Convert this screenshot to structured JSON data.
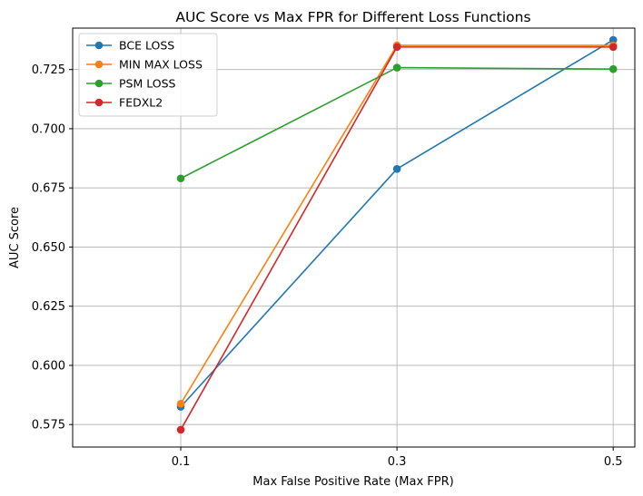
{
  "chart_data": {
    "type": "line",
    "title": "AUC Score vs Max FPR for Different Loss Functions",
    "xlabel": "Max False Positive Rate (Max FPR)",
    "ylabel": "AUC Score",
    "categories": [
      "0.1",
      "0.3",
      "0.5"
    ],
    "x": [
      0.1,
      0.3,
      0.5
    ],
    "xlim": [
      0.0,
      0.52
    ],
    "ylim": [
      0.5655,
      0.7425
    ],
    "yticks": [
      0.575,
      0.6,
      0.625,
      0.65,
      0.675,
      0.7,
      0.725
    ],
    "ytick_labels": [
      "0.575",
      "0.600",
      "0.625",
      "0.650",
      "0.675",
      "0.700",
      "0.725"
    ],
    "grid": true,
    "legend_position": "top-left",
    "series": [
      {
        "name": "BCE LOSS",
        "color": "#1f77b4",
        "values": [
          0.5825,
          0.683,
          0.7375
        ]
      },
      {
        "name": "MIN MAX LOSS",
        "color": "#ff7f0e",
        "values": [
          0.5838,
          0.7352,
          0.7352
        ]
      },
      {
        "name": "PSM LOSS",
        "color": "#2ca02c",
        "values": [
          0.679,
          0.7258,
          0.7252
        ]
      },
      {
        "name": "FEDXL2",
        "color": "#d62728",
        "values": [
          0.5728,
          0.7345,
          0.7345
        ]
      }
    ]
  }
}
